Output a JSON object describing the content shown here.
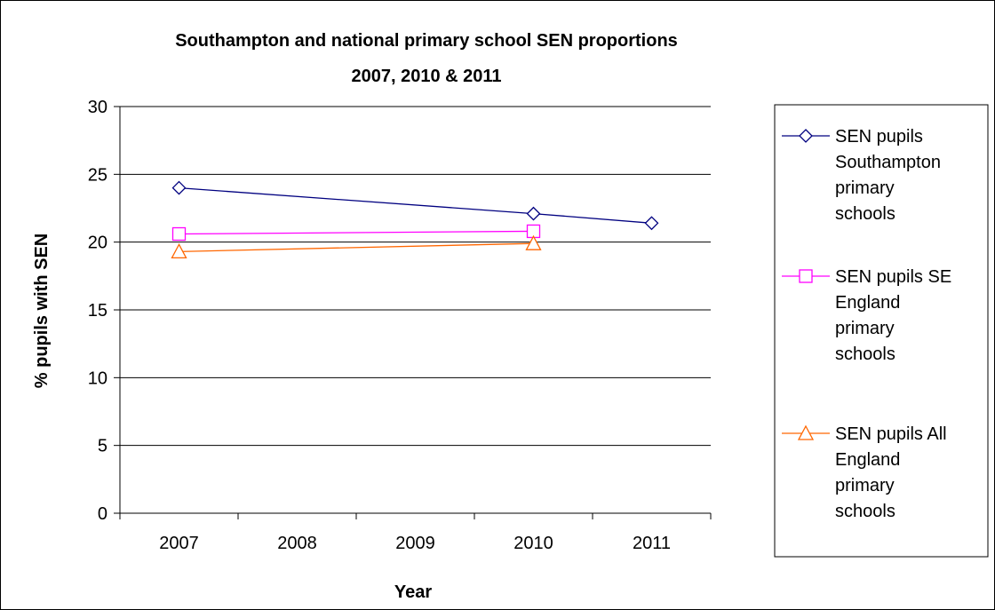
{
  "chart_data": {
    "type": "line",
    "title": [
      "Southampton and national primary school SEN proportions",
      "2007, 2010 & 2011"
    ],
    "xlabel": "Year",
    "ylabel": "% pupils with SEN",
    "categories": [
      "2007",
      "2008",
      "2009",
      "2010",
      "2011"
    ],
    "ylim": [
      0,
      30
    ],
    "yticks": [
      0,
      5,
      10,
      15,
      20,
      25,
      30
    ],
    "grid": true,
    "legend_position": "right",
    "series": [
      {
        "name": [
          "SEN pupils",
          "Southampton",
          "primary",
          "schools"
        ],
        "color": "#000080",
        "marker": "diamond",
        "values": [
          24.0,
          null,
          null,
          22.1,
          21.4
        ]
      },
      {
        "name": [
          "SEN pupils SE",
          "England",
          "primary",
          "schools"
        ],
        "color": "#ff00ff",
        "marker": "square",
        "values": [
          20.6,
          null,
          null,
          20.8,
          null
        ]
      },
      {
        "name": [
          "SEN pupils All",
          "England",
          "primary",
          "schools"
        ],
        "color": "#ff6600",
        "marker": "triangle",
        "values": [
          19.3,
          null,
          null,
          19.9,
          null
        ]
      }
    ]
  }
}
